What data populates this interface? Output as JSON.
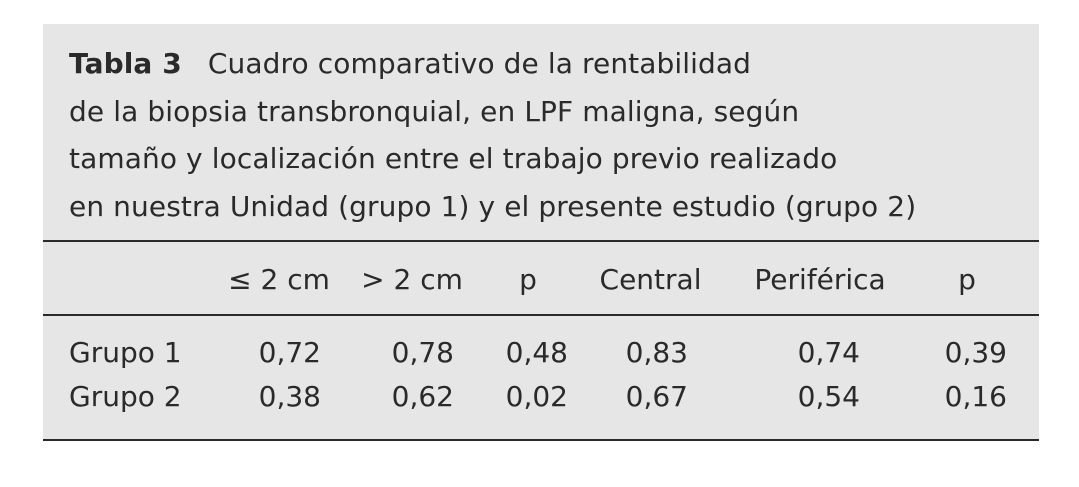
{
  "caption": {
    "label": "Tabla 3",
    "lines": [
      "Cuadro comparativo de la rentabilidad",
      "de la biopsia transbronquial, en LPF maligna, según",
      "tamaño y localización entre el trabajo previo realizado",
      "en nuestra Unidad (grupo 1) y el presente estudio (grupo 2)"
    ]
  },
  "table": {
    "headers": [
      "",
      "≤ 2 cm",
      "> 2 cm",
      "p",
      "Central",
      "Periférica",
      "p"
    ],
    "rows": [
      {
        "label": "Grupo 1",
        "values": [
          "0,72",
          "0,78",
          "0,48",
          "0,83",
          "0,74",
          "0,39"
        ]
      },
      {
        "label": "Grupo 2",
        "values": [
          "0,38",
          "0,62",
          "0,02",
          "0,67",
          "0,54",
          "0,16"
        ]
      }
    ]
  }
}
